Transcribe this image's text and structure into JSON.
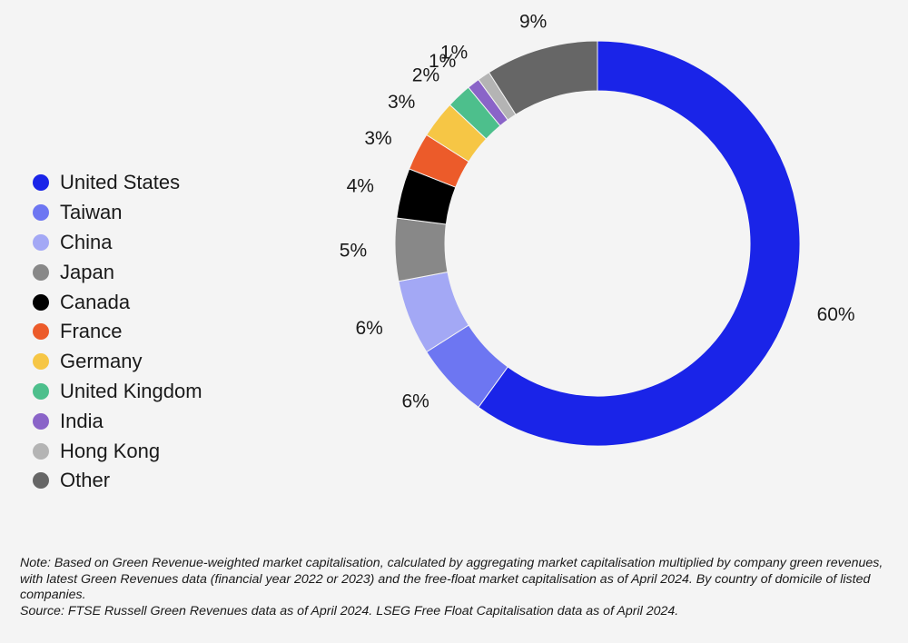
{
  "chart_data": {
    "type": "pie",
    "donut": true,
    "legend_position": "left",
    "slices": [
      {
        "name": "United States",
        "value": 60,
        "label": "60%",
        "color": "#1a24e8"
      },
      {
        "name": "Taiwan",
        "value": 6,
        "label": "6%",
        "color": "#6d76f2"
      },
      {
        "name": "China",
        "value": 6,
        "label": "6%",
        "color": "#a3a8f5"
      },
      {
        "name": "Japan",
        "value": 5,
        "label": "5%",
        "color": "#888888"
      },
      {
        "name": "Canada",
        "value": 4,
        "label": "4%",
        "color": "#000000"
      },
      {
        "name": "France",
        "value": 3,
        "label": "3%",
        "color": "#ec5b2a"
      },
      {
        "name": "Germany",
        "value": 3,
        "label": "3%",
        "color": "#f6c645"
      },
      {
        "name": "United Kingdom",
        "value": 2,
        "label": "2%",
        "color": "#4dbf8c"
      },
      {
        "name": "India",
        "value": 1,
        "label": "1%",
        "color": "#8a64c8"
      },
      {
        "name": "Hong Kong",
        "value": 1,
        "label": "1%",
        "color": "#b4b4b4"
      },
      {
        "name": "Other",
        "value": 9,
        "label": "9%",
        "color": "#666666"
      }
    ]
  },
  "notes": {
    "note": "Note: Based on Green Revenue-weighted market capitalisation, calculated by aggregating market capitalisation multiplied by company green revenues, with latest Green Revenues data (financial year 2022 or 2023) and the free-float market capitalisation as of April 2024. By country of domicile of listed companies.",
    "source": "Source: FTSE Russell Green Revenues data as of April 2024. LSEG Free Float Capitalisation data as of April 2024."
  }
}
